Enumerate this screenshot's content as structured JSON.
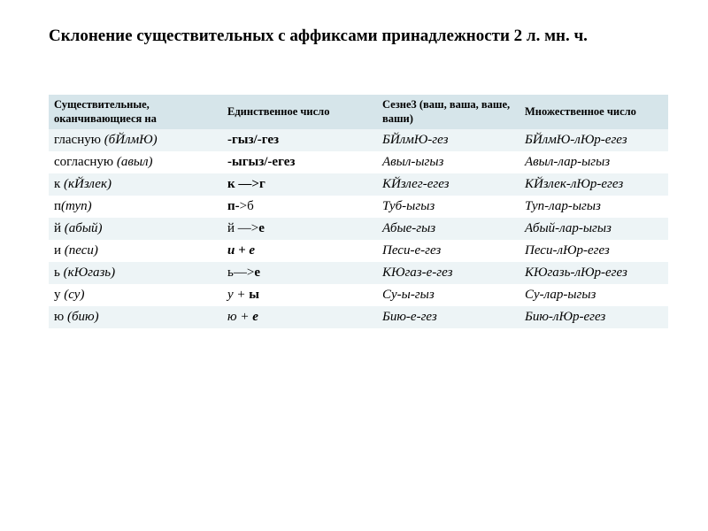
{
  "title": "Склонение существительных с аффиксами принадлежности 2 л. мн. ч.",
  "colors": {
    "header_bg": "#d6e5ea",
    "band_a_bg": "#edf4f6",
    "band_b_bg": "#ffffff",
    "text": "#000000"
  },
  "typography": {
    "title_fontsize_pt": 14,
    "header_fontsize_pt": 9,
    "cell_fontsize_pt": 11,
    "font_family": "Times New Roman"
  },
  "table": {
    "columns": [
      "Существительные, оканчивающиеся на",
      "Единственное  число",
      "Сезне3 (ваш, ваша, ваше, ваши)",
      "Множественное  число"
    ],
    "column_widths_pct": [
      28,
      25,
      23,
      24
    ],
    "rows": [
      {
        "c1_plain": "гласную ",
        "c1_ital": "(бЙлмЮ)",
        "c2": "-гыз/-гез",
        "c3": "БЙлмЮ-гез",
        "c4": "БЙлмЮ-лЮр-егез"
      },
      {
        "c1_plain": "согласную ",
        "c1_ital": "(авыл)",
        "c2": "-ыгыз/-егез",
        "c3": "Авыл-ыгыз",
        "c4": "Авыл-лар-ыгыз"
      },
      {
        "c1_plain": "к ",
        "c1_ital": "(кЙзлек)",
        "c2": "к —>г",
        "c3": "КЙзлег-егез",
        "c4": "КЙзлек-лЮр-егез"
      },
      {
        "c1_plain": "п",
        "c1_ital": "(туп)",
        "c2_bold": "п-",
        "c2_plain": ">б",
        "c3": "Туб-ыгыз",
        "c4": "Туп-лар-ыгыз"
      },
      {
        "c1_plain": "й ",
        "c1_ital": "(абый)",
        "c2_plain": "й —>",
        "c2_bold_tail": "е",
        "c3": "Абые-гыз",
        "c4": "Абый-лар-ыгыз"
      },
      {
        "c1_plain": "и ",
        "c1_ital": "(песи)",
        "c2_ital_bold": "и + е",
        "c3": "Песи-е-гез",
        "c4": "Песи-лЮр-егез"
      },
      {
        "c1_plain": "ь ",
        "c1_ital": "(кЮгазь)",
        "c2_plain": "ь—>",
        "c2_bold_tail": "е",
        "c3": "КЮгаз-е-гез",
        "c4": "КЮгазь-лЮр-егез"
      },
      {
        "c1_plain": "у ",
        "c1_ital": "(су)",
        "c2_ital": "у + ",
        "c2_bold_tail": "ы",
        "c3": "Су-ы-гыз",
        "c4": "Су-лар-ыгыз"
      },
      {
        "c1_plain": "ю ",
        "c1_ital": "(бию)",
        "c2_ital": "ю + ",
        "c2_ital_bold_tail": "е",
        "c3": "Бию-е-гез",
        "c4": "Бию-лЮр-егез"
      }
    ]
  }
}
